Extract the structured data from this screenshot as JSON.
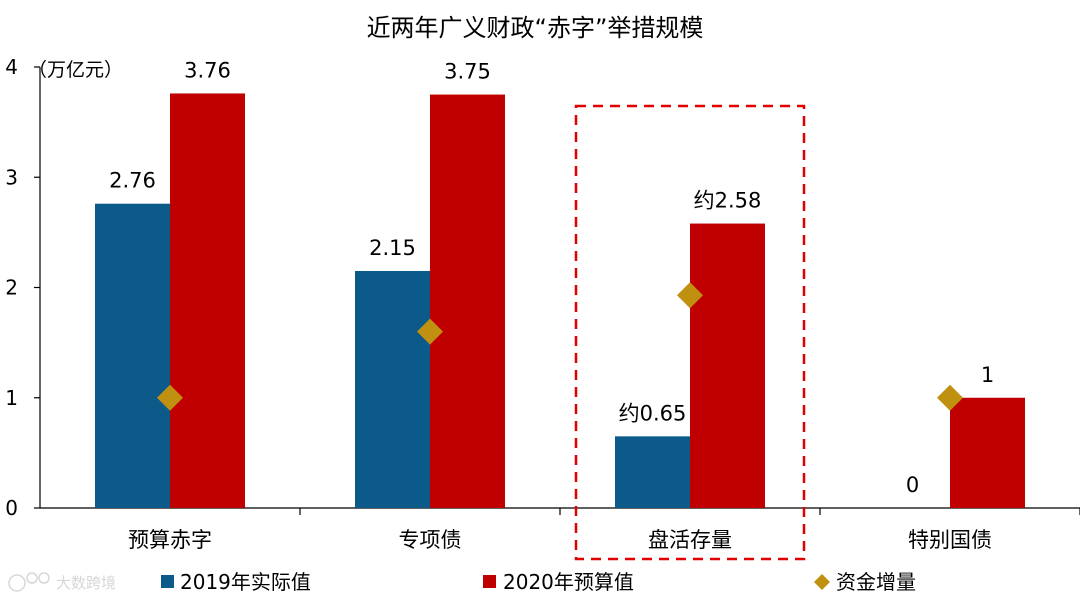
{
  "chart_data": {
    "type": "bar",
    "title": "近两年广义财政“赤字”举措规模",
    "unit_label": "（万亿元）",
    "categories": [
      "预算赤字",
      "专项债",
      "盘活存量",
      "特别国债"
    ],
    "series": [
      {
        "name": "2019年实际值",
        "type": "bar",
        "color": "#0b5a8a",
        "values": [
          2.76,
          2.15,
          0.65,
          0
        ],
        "labels": [
          "2.76",
          "2.15",
          "约0.65",
          "0"
        ]
      },
      {
        "name": "2020年预算值",
        "type": "bar",
        "color": "#c00000",
        "values": [
          3.76,
          3.75,
          2.58,
          1
        ],
        "labels": [
          "3.76",
          "3.75",
          "约2.58",
          "1"
        ]
      },
      {
        "name": "资金增量",
        "type": "marker",
        "color": "#c09010",
        "values": [
          1.0,
          1.6,
          1.93,
          1.0
        ]
      }
    ],
    "yticks": [
      0,
      1,
      2,
      3,
      4
    ],
    "ylim": [
      0,
      4
    ],
    "grid": false,
    "legend_position": "bottom",
    "highlight_category": "盘活存量",
    "watermark": "大数跨境"
  }
}
